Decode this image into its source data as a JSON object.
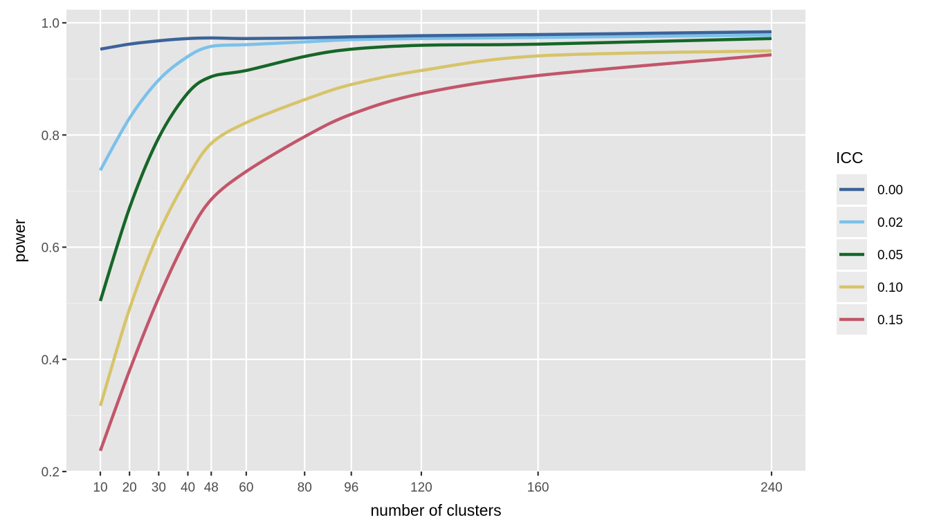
{
  "chart_data": {
    "type": "line",
    "title": "",
    "xlabel": "number of clusters",
    "ylabel": "power",
    "xlim": [
      0,
      250
    ],
    "ylim": [
      0.2,
      1.0
    ],
    "x_ticks": [
      10,
      20,
      30,
      40,
      48,
      60,
      80,
      96,
      120,
      160,
      240
    ],
    "x_tick_labels": [
      "10",
      "20",
      "30",
      "40",
      "48",
      "60",
      "80",
      "96",
      "120",
      "160",
      "240"
    ],
    "y_ticks": [
      0.2,
      0.4,
      0.6,
      0.8,
      1.0
    ],
    "y_tick_labels": [
      "0.2",
      "0.4",
      "0.6",
      "0.8",
      "1.0"
    ],
    "grid": true,
    "background": "#e5e5e5",
    "legend": {
      "title": "ICC",
      "position": "right"
    },
    "series": [
      {
        "name": "0.00",
        "color": "#3c6399",
        "points": [
          [
            10,
            0.953
          ],
          [
            20,
            0.962
          ],
          [
            30,
            0.968
          ],
          [
            40,
            0.972
          ],
          [
            48,
            0.973
          ],
          [
            60,
            0.972
          ],
          [
            80,
            0.973
          ],
          [
            96,
            0.975
          ],
          [
            120,
            0.977
          ],
          [
            160,
            0.979
          ],
          [
            240,
            0.984
          ]
        ]
      },
      {
        "name": "0.02",
        "color": "#7bc1ea",
        "points": [
          [
            10,
            0.737
          ],
          [
            20,
            0.83
          ],
          [
            30,
            0.898
          ],
          [
            40,
            0.94
          ],
          [
            48,
            0.958
          ],
          [
            60,
            0.961
          ],
          [
            80,
            0.966
          ],
          [
            96,
            0.97
          ],
          [
            120,
            0.972
          ],
          [
            160,
            0.974
          ],
          [
            240,
            0.978
          ]
        ]
      },
      {
        "name": "0.05",
        "color": "#166628",
        "points": [
          [
            10,
            0.504
          ],
          [
            20,
            0.67
          ],
          [
            30,
            0.795
          ],
          [
            40,
            0.875
          ],
          [
            48,
            0.904
          ],
          [
            60,
            0.915
          ],
          [
            80,
            0.94
          ],
          [
            96,
            0.953
          ],
          [
            120,
            0.96
          ],
          [
            160,
            0.962
          ],
          [
            240,
            0.972
          ]
        ]
      },
      {
        "name": "0.10",
        "color": "#d7c46a",
        "points": [
          [
            10,
            0.317
          ],
          [
            20,
            0.49
          ],
          [
            30,
            0.625
          ],
          [
            40,
            0.725
          ],
          [
            48,
            0.785
          ],
          [
            60,
            0.822
          ],
          [
            80,
            0.863
          ],
          [
            96,
            0.89
          ],
          [
            120,
            0.915
          ],
          [
            160,
            0.941
          ],
          [
            240,
            0.95
          ]
        ]
      },
      {
        "name": "0.15",
        "color": "#c2566a",
        "points": [
          [
            10,
            0.237
          ],
          [
            20,
            0.38
          ],
          [
            30,
            0.51
          ],
          [
            40,
            0.62
          ],
          [
            48,
            0.685
          ],
          [
            60,
            0.735
          ],
          [
            80,
            0.797
          ],
          [
            96,
            0.837
          ],
          [
            120,
            0.874
          ],
          [
            160,
            0.906
          ],
          [
            240,
            0.943
          ]
        ]
      }
    ]
  }
}
